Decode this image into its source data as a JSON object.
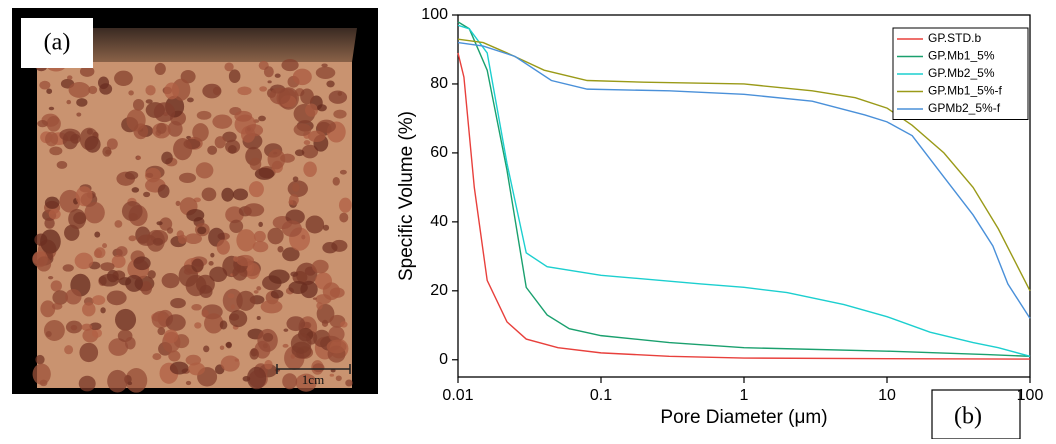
{
  "photo": {
    "label": "(a)",
    "scale_bar": "1cm"
  },
  "chart_data": {
    "type": "line",
    "panel_label": "(b)",
    "xlabel": "Pore Diameter (μm)",
    "ylabel": "Specific Volume (%)",
    "xscale": "log",
    "xlim": [
      0.01,
      100
    ],
    "xticks": [
      0.01,
      0.1,
      1,
      10,
      100
    ],
    "ylim": [
      -5,
      100
    ],
    "yticks": [
      0,
      20,
      40,
      60,
      80,
      100
    ],
    "legend": "upper right",
    "series": [
      {
        "name": "GP.STD.b",
        "color": "#e8403c",
        "x": [
          0.01,
          0.011,
          0.013,
          0.016,
          0.022,
          0.03,
          0.05,
          0.1,
          0.3,
          1,
          10,
          100
        ],
        "values": [
          89,
          82,
          50,
          23,
          11,
          6,
          3.5,
          2,
          1,
          0.5,
          0.3,
          0.2
        ]
      },
      {
        "name": "GP.Mb1_5%",
        "color": "#1aa06e",
        "x": [
          0.01,
          0.012,
          0.016,
          0.022,
          0.03,
          0.042,
          0.06,
          0.1,
          0.3,
          1,
          10,
          50,
          100
        ],
        "values": [
          98,
          96,
          84,
          55,
          21,
          13,
          9,
          7,
          5,
          3.5,
          2.5,
          1.5,
          1
        ]
      },
      {
        "name": "GP.Mb2_5%",
        "color": "#1ccfcf",
        "x": [
          0.01,
          0.012,
          0.016,
          0.022,
          0.03,
          0.042,
          0.1,
          0.5,
          1,
          2,
          5,
          10,
          20,
          40,
          60,
          100
        ],
        "values": [
          97,
          96,
          89,
          57,
          31,
          27,
          24.5,
          22,
          21,
          19.5,
          16,
          12.5,
          8,
          5,
          3.5,
          1
        ]
      },
      {
        "name": "GP.Mb1_5%-f",
        "color": "#9a9a18",
        "x": [
          0.01,
          0.015,
          0.022,
          0.04,
          0.08,
          0.2,
          1,
          3,
          6,
          10,
          15,
          25,
          40,
          60,
          100
        ],
        "values": [
          93,
          92,
          89,
          84,
          81,
          80.5,
          80,
          78,
          76,
          73,
          68,
          60,
          50,
          38,
          20
        ]
      },
      {
        "name": "GPMb2_5%-f",
        "color": "#4a90d9",
        "x": [
          0.01,
          0.015,
          0.025,
          0.045,
          0.08,
          0.3,
          1,
          3,
          7,
          10,
          15,
          25,
          40,
          55,
          70,
          100
        ],
        "values": [
          92,
          91,
          88,
          81,
          78.5,
          78,
          77,
          75,
          71,
          69,
          65,
          53,
          42,
          33,
          22,
          12
        ]
      }
    ]
  }
}
